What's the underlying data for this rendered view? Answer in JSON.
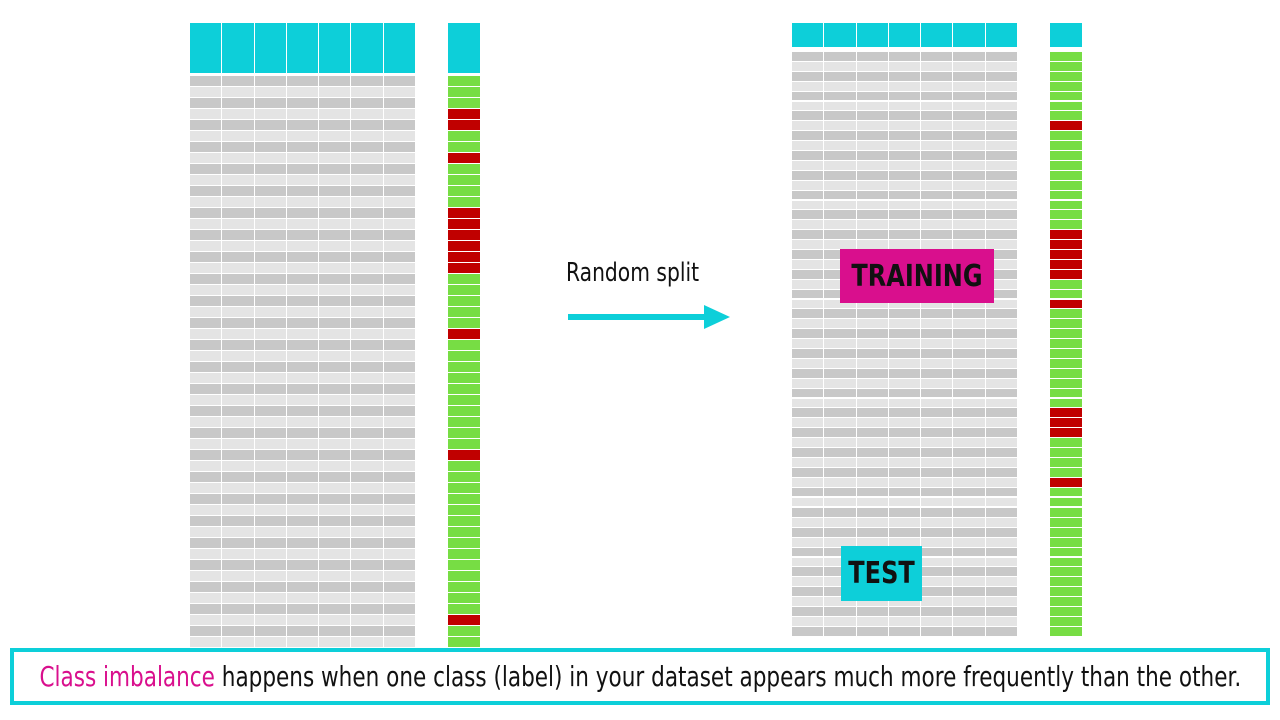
{
  "split": {
    "label": "Random split"
  },
  "sections": {
    "training": "TRAINING",
    "test": "TEST"
  },
  "caption": {
    "highlight": "Class imbalance",
    "rest": " happens when one class (label) in your dataset appears much more frequently than the other."
  },
  "colors": {
    "header": "#0dcfd9",
    "feature_light": "#e4e4e4",
    "feature_dark": "#c8c8c8",
    "majority_class": "#77dd44",
    "minority_class": "#c00000",
    "training_tag": "#d90f8d",
    "test_tag": "#0dcfd9",
    "border": "#0dcfd9"
  },
  "datasets": {
    "original_labels": "gggrrggrggggrrrrrrgggggrggggggggggrggggggggggggggrggg",
    "training_labels": "gggggggrggggggggggrrrrrggrggggggggggrrrggggrgg",
    "test_labels": "ggggggggggggg"
  }
}
